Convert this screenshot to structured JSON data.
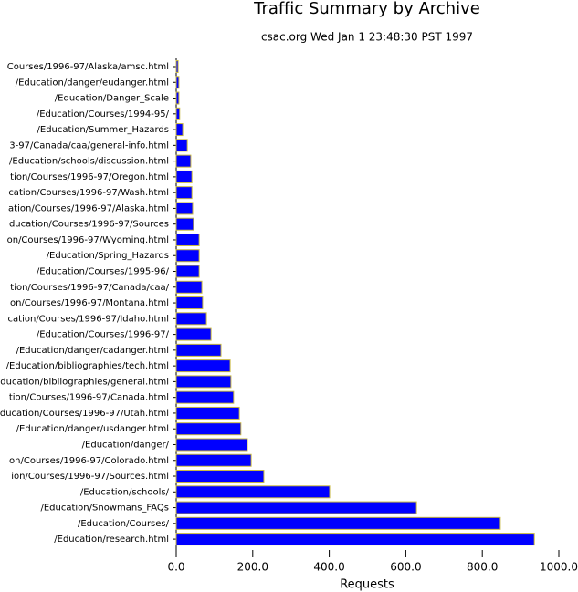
{
  "chart_data": {
    "type": "bar",
    "orientation": "horizontal",
    "title": "Traffic Summary by Archive",
    "subtitle": "csac.org Wed Jan  1 23:48:30 PST 1997",
    "x_label": "Requests",
    "color": "#0000ff",
    "edge_color": "#c8b840",
    "categories": [
      "Courses/1996-97/Alaska/amsc.html",
      "/Education/danger/eudanger.html",
      "/Education/Danger_Scale",
      "/Education/Courses/1994-95/",
      "/Education/Summer_Hazards",
      "3-97/Canada/caa/general-info.html",
      "/Education/schools/discussion.html",
      "tion/Courses/1996-97/Oregon.html",
      "cation/Courses/1996-97/Wash.html",
      "ation/Courses/1996-97/Alaska.html",
      "ducation/Courses/1996-97/Sources",
      "on/Courses/1996-97/Wyoming.html",
      "/Education/Spring_Hazards",
      "/Education/Courses/1995-96/",
      "tion/Courses/1996-97/Canada/caa/",
      "on/Courses/1996-97/Montana.html",
      "cation/Courses/1996-97/Idaho.html",
      "/Education/Courses/1996-97/",
      "/Education/danger/cadanger.html",
      "/Education/bibliographies/tech.html",
      "ducation/bibliographies/general.html",
      "tion/Courses/1996-97/Canada.html",
      "ducation/Courses/1996-97/Utah.html",
      "/Education/danger/usdanger.html",
      "/Education/danger/",
      "on/Courses/1996-97/Colorado.html",
      "ion/Courses/1996-97/Sources.html",
      "/Education/schools/",
      "/Education/Snowmans_FAQs",
      "/Education/Courses/",
      "/Education/research.html"
    ],
    "values": [
      5,
      7,
      7,
      9,
      17,
      29,
      38,
      41,
      41,
      43,
      45,
      60,
      60,
      60,
      67,
      69,
      79,
      91,
      117,
      141,
      143,
      150,
      165,
      169,
      186,
      196,
      229,
      401,
      628,
      847,
      936
    ],
    "xlim": [
      0,
      1000
    ],
    "xticks": [
      {
        "value": 0,
        "label": "0.0"
      },
      {
        "value": 200,
        "label": "200.0"
      },
      {
        "value": 400,
        "label": "400.0"
      },
      {
        "value": 600,
        "label": "600.0"
      },
      {
        "value": 800,
        "label": "800.0"
      },
      {
        "value": 1000,
        "label": "1000.0"
      }
    ]
  }
}
